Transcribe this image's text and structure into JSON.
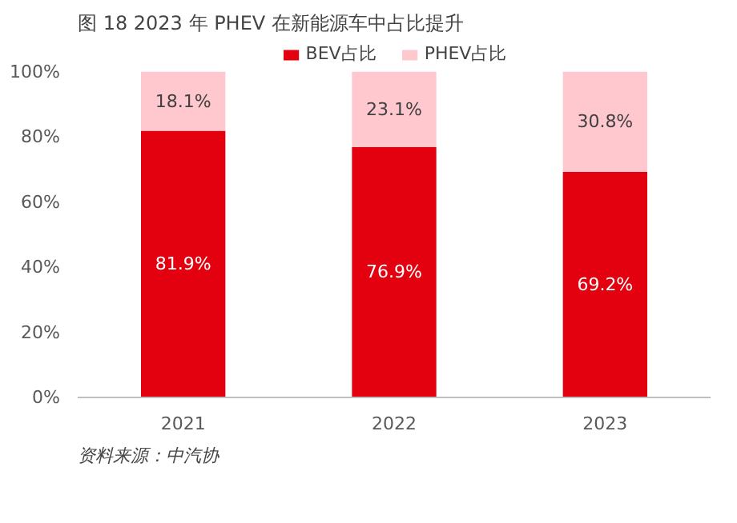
{
  "chart_data": {
    "type": "bar",
    "title": "图 18 2023 年 PHEV 在新能源车中占比提升",
    "categories": [
      "2021",
      "2022",
      "2023"
    ],
    "stacked": true,
    "series": [
      {
        "name": "BEV占比",
        "color": "#e3000f",
        "values": [
          81.9,
          76.9,
          69.2
        ],
        "value_labels": [
          "81.9%",
          "76.9%",
          "69.2%"
        ]
      },
      {
        "name": "PHEV占比",
        "color": "#ffc7ce",
        "values": [
          18.1,
          23.1,
          30.8
        ],
        "value_labels": [
          "18.1%",
          "23.1%",
          "30.8%"
        ]
      }
    ],
    "ylim": [
      0,
      100
    ],
    "yticks": [
      {
        "value": 0,
        "label": "0%"
      },
      {
        "value": 20,
        "label": "20%"
      },
      {
        "value": 40,
        "label": "40%"
      },
      {
        "value": 60,
        "label": "60%"
      },
      {
        "value": 80,
        "label": "80%"
      },
      {
        "value": 100,
        "label": "100%"
      }
    ],
    "legend": "top",
    "grid": false,
    "annotations": [
      "资料来源：中汽协"
    ]
  }
}
